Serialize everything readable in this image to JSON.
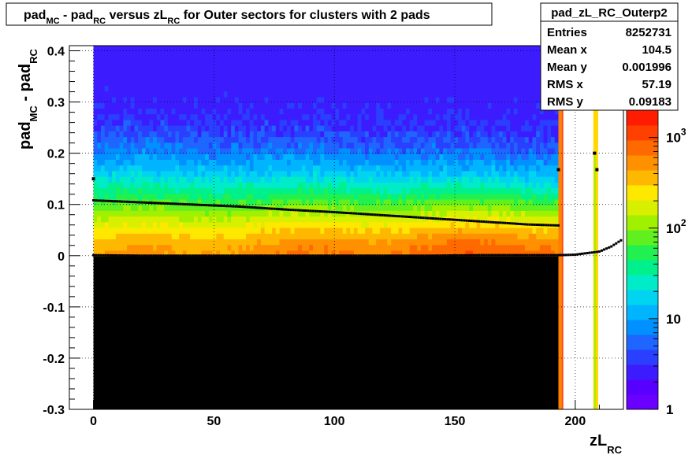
{
  "chart_data": {
    "type": "heatmap",
    "title": {
      "t1": "pad",
      "s1": "MC",
      "t2": " - pad",
      "s2": "RC",
      "t3": " versus zL",
      "s3": "RC",
      "t4": " for Outer sectors for clusters with 2 pads"
    },
    "xlabel": {
      "main": "zL",
      "sub": "RC"
    },
    "ylabel": {
      "t1": "pad",
      "s1": "MC",
      "t2": " - pad",
      "s2": "RC"
    },
    "xlim": [
      -10,
      220
    ],
    "ylim": [
      -0.3,
      0.41
    ],
    "x_ticks": [
      "0",
      "50",
      "100",
      "150",
      "200"
    ],
    "x_tick_values": [
      0,
      50,
      100,
      150,
      200
    ],
    "y_ticks": [
      "-0.3",
      "-0.2",
      "-0.1",
      "0",
      "0.1",
      "0.2",
      "0.3",
      "0.4"
    ],
    "y_tick_values": [
      -0.3,
      -0.2,
      -0.1,
      0,
      0.1,
      0.2,
      0.3,
      0.4
    ],
    "grid": true,
    "z_scale": "log",
    "z_range": [
      1,
      2000
    ],
    "z_ticks": [
      "1",
      "10",
      "10",
      "10"
    ],
    "z_tick_exps": [
      "",
      "",
      "2",
      "3"
    ],
    "z_tick_values": [
      1,
      10,
      100,
      1000
    ],
    "palette": [
      "#6a00ff",
      "#5800ff",
      "#3c1cff",
      "#2a3fff",
      "#1e66ff",
      "#0090ff",
      "#00b4ff",
      "#00d4f0",
      "#00ecc8",
      "#00f08c",
      "#20f050",
      "#60f020",
      "#a0f000",
      "#d8f000",
      "#ffe800",
      "#ffb800",
      "#ff9000",
      "#ff6a00",
      "#ff4000",
      "#ff1c00"
    ],
    "mean_profile": {
      "x": [
        0,
        20,
        40,
        60,
        80,
        100,
        120,
        140,
        160,
        180,
        193,
        200,
        210,
        215,
        220
      ],
      "y": [
        0.001,
        0.0,
        0.0,
        0.0,
        0.0,
        0.0,
        0.0,
        0.0,
        0.001,
        0.001,
        0.001,
        0.002,
        0.008,
        0.018,
        0.033
      ]
    },
    "rms_profile": {
      "x": [
        0,
        20,
        40,
        60,
        80,
        100,
        120,
        140,
        160,
        180,
        193
      ],
      "y": [
        0.108,
        0.104,
        0.1,
        0.096,
        0.09,
        0.085,
        0.079,
        0.073,
        0.067,
        0.061,
        0.059
      ]
    },
    "outlier_points": [
      {
        "x": 0,
        "y": 0.15
      },
      {
        "x": 193,
        "y": 0.168
      },
      {
        "x": 208,
        "y": 0.2
      },
      {
        "x": 209,
        "y": 0.168
      }
    ]
  },
  "stats": {
    "name": "pad_zL_RC_Outerp2",
    "rows": [
      {
        "label": "Entries",
        "value": "8252731"
      },
      {
        "label": "Mean x",
        "value": "104.5"
      },
      {
        "label": "Mean y",
        "value": "0.001996"
      },
      {
        "label": "RMS x",
        "value": "57.19"
      },
      {
        "label": "RMS y",
        "value": "0.09183"
      }
    ]
  }
}
